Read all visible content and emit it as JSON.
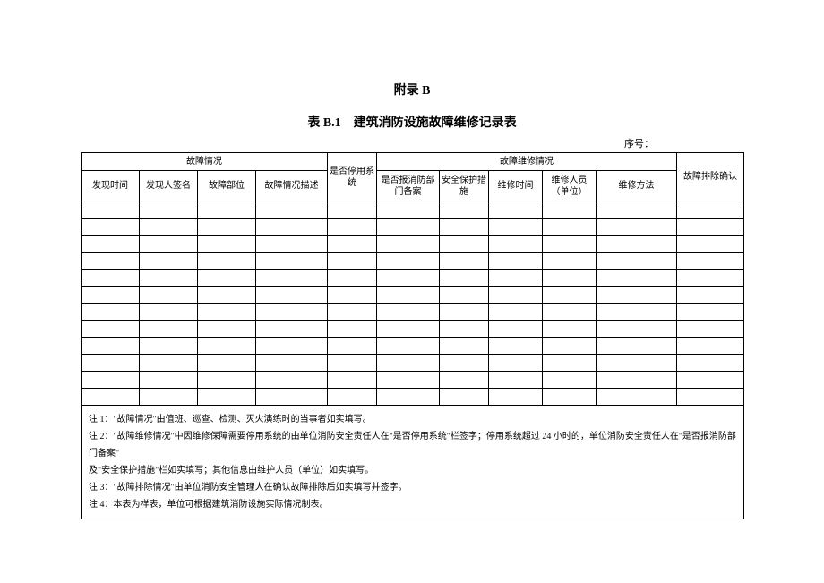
{
  "appendix_title": "附录 B",
  "table_title": "表 B.1　建筑消防设施故障维修记录表",
  "serial_label": "序号：",
  "headers": {
    "fault_group": "故障情况",
    "repair_group": "故障维修情况",
    "col_time_found": "发现时间",
    "col_finder_sign": "发现人签名",
    "col_fault_part": "故障部位",
    "col_fault_desc": "故障情况描述",
    "col_stop_system": "是否停用系统",
    "col_report_fire": "是否报消防部门备案",
    "col_safety_measure": "安全保护措施",
    "col_repair_time": "维修时间",
    "col_repair_person": "维修人员（单位）",
    "col_repair_method": "维修方法",
    "col_confirm": "故障排除确认"
  },
  "empty_row_count": 12,
  "notes": {
    "n1": "注 1：\"故障情况\"由值班、巡查、检测、灭火演练时的当事者如实填写。",
    "n2": "注 2：\"故障维修情况\"中因维修保障需要停用系统的由单位消防安全责任人在\"是否停用系统\"栏签字；停用系统超过 24 小时的，单位消防安全责任人在\"是否报消防部门备案\"",
    "n2b": "及\"安全保护措施\"栏如实填写；其他信息由维护人员（单位）如实填写。",
    "n3": "注 3：\"故障排除情况\"由单位消防安全管理人在确认故障排除后如实填写并签字。",
    "n4": "注 4：本表为样表，单位可根据建筑消防设施实际情况制表。"
  },
  "col_widths": {
    "c1": 65,
    "c2": 65,
    "c3": 65,
    "c4": 80,
    "c5": 55,
    "c6": 70,
    "c7": 55,
    "c8": 60,
    "c9": 60,
    "c10": 90,
    "c11": 75
  },
  "styling": {
    "background_color": "#ffffff",
    "text_color": "#000000",
    "border_color": "#000000",
    "body_font_size": 12,
    "header_font_size": 10,
    "notes_font_size": 10
  }
}
